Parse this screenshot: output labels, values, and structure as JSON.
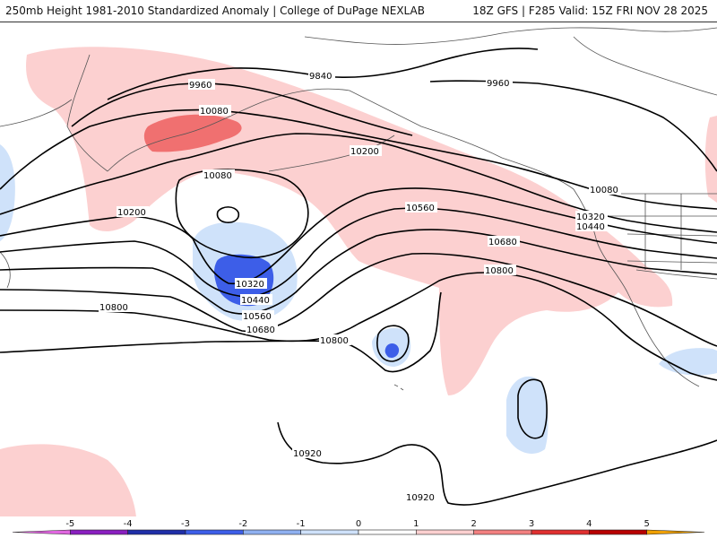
{
  "header": {
    "title": "250mb Height 1981-2010 Standardized Anomaly | College of DuPage NEXLAB",
    "run_info": "18Z GFS | F285 Valid: 15Z FRI NOV 28 2025"
  },
  "contour_labels": [
    {
      "id": "c9840",
      "text": "9840"
    },
    {
      "id": "c9960a",
      "text": "9960"
    },
    {
      "id": "c9960b",
      "text": "9960"
    },
    {
      "id": "c10080a",
      "text": "10080"
    },
    {
      "id": "c10080b",
      "text": "10080"
    },
    {
      "id": "c10080c",
      "text": "10080"
    },
    {
      "id": "c10200a",
      "text": "10200"
    },
    {
      "id": "c10200b",
      "text": "10200"
    },
    {
      "id": "c10320a",
      "text": "10320"
    },
    {
      "id": "c10320b",
      "text": "10320"
    },
    {
      "id": "c10440a",
      "text": "10440"
    },
    {
      "id": "c10440b",
      "text": "10440"
    },
    {
      "id": "c10560a",
      "text": "10560"
    },
    {
      "id": "c10560b",
      "text": "10560"
    },
    {
      "id": "c10680a",
      "text": "10680"
    },
    {
      "id": "c10680b",
      "text": "10680"
    },
    {
      "id": "c10800a",
      "text": "10800"
    },
    {
      "id": "c10800b",
      "text": "10800"
    },
    {
      "id": "c10800c",
      "text": "10800"
    },
    {
      "id": "c10920a",
      "text": "10920"
    },
    {
      "id": "c10920b",
      "text": "10920"
    }
  ],
  "colorbar": {
    "min": -6,
    "max": 6,
    "ticks": [
      "-5",
      "-4",
      "-3",
      "-2",
      "-1",
      "0",
      "1",
      "2",
      "3",
      "4",
      "5"
    ],
    "bins": [
      {
        "from": -6,
        "to": -5,
        "color": "#e066e0"
      },
      {
        "from": -5,
        "to": -4,
        "color": "#8a1fc0"
      },
      {
        "from": -4,
        "to": -3,
        "color": "#1f2fa8"
      },
      {
        "from": -3,
        "to": -2,
        "color": "#3d5ee8"
      },
      {
        "from": -2,
        "to": -1,
        "color": "#8fb0f0"
      },
      {
        "from": -1,
        "to": 0,
        "color": "#cfe2fa"
      },
      {
        "from": 0,
        "to": 1,
        "color": "#ffffff"
      },
      {
        "from": 1,
        "to": 2,
        "color": "#fcd0d0"
      },
      {
        "from": 2,
        "to": 3,
        "color": "#f28080"
      },
      {
        "from": 3,
        "to": 4,
        "color": "#e03030"
      },
      {
        "from": 4,
        "to": 5,
        "color": "#b80000"
      },
      {
        "from": 5,
        "to": 6,
        "color": "#f0a000"
      }
    ]
  },
  "colors": {
    "pos1": "#fcd0d0",
    "pos2": "#f07070",
    "neg1": "#cfe2fa",
    "neg3": "#3d5ee8"
  }
}
